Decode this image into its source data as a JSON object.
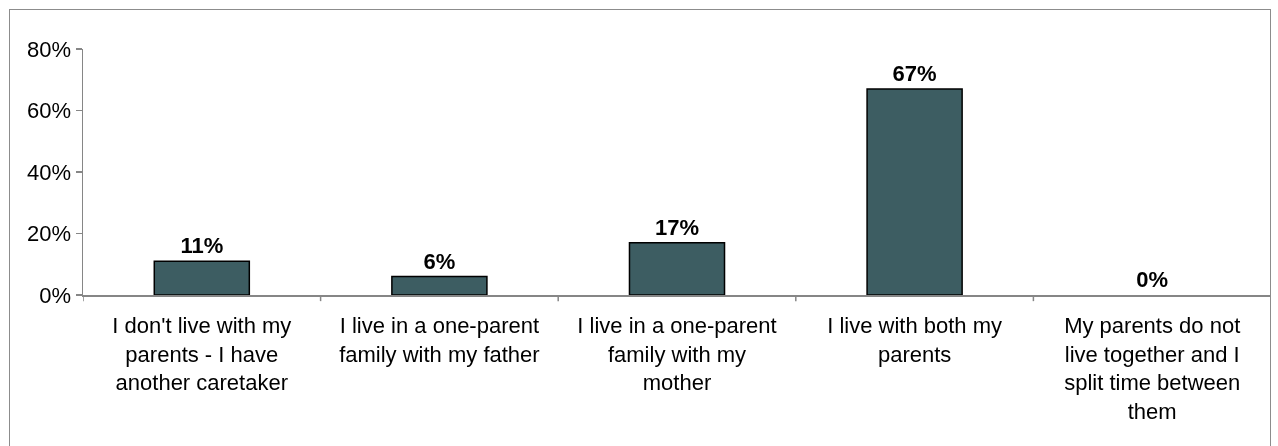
{
  "chart_data": {
    "type": "bar",
    "categories": [
      "I don't live with my\nparents - I have\nanother caretaker",
      "I live in a one-parent\nfamily with my father",
      "I live in a one-parent\nfamily with my\nmother",
      "I live with both my\nparents",
      "My parents do not\nlive together and I\nsplit time between\nthem"
    ],
    "values": [
      11,
      6,
      17,
      67,
      0
    ],
    "value_labels": [
      "11%",
      "6%",
      "17%",
      "67%",
      "0%"
    ],
    "color": "#3d5d62",
    "ylim": [
      0,
      80
    ],
    "yticks": [
      {
        "value": 0,
        "label": "0%"
      },
      {
        "value": 20,
        "label": "20%"
      },
      {
        "value": 40,
        "label": "40%"
      },
      {
        "value": 60,
        "label": "60%"
      },
      {
        "value": 80,
        "label": "80%"
      }
    ]
  }
}
